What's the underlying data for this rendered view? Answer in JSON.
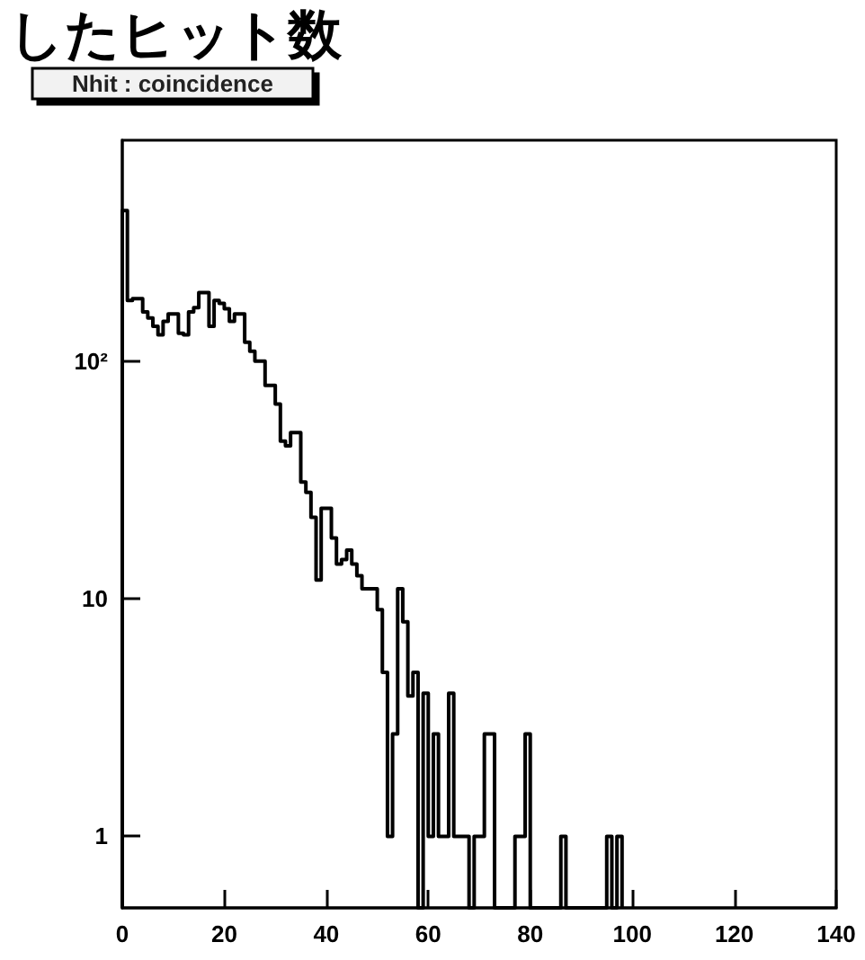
{
  "chart_data": {
    "type": "histogram",
    "title": "したヒット数",
    "subtitle": "Nhit : coincidence",
    "bins": [
      0,
      1,
      2,
      3,
      4,
      5,
      6,
      7,
      8,
      9,
      10,
      11,
      12,
      13,
      14,
      15,
      16,
      17,
      18,
      19,
      20,
      21,
      22,
      23,
      24,
      25,
      26,
      27,
      28,
      29,
      30,
      31,
      32,
      33,
      34,
      35,
      36,
      37,
      38,
      39,
      40,
      41,
      42,
      43,
      44,
      45,
      46,
      47,
      48,
      49,
      50,
      51,
      52,
      53,
      54,
      55,
      56,
      57,
      58,
      59,
      60,
      61,
      62,
      63,
      64,
      65,
      66,
      67,
      68,
      69,
      70,
      71,
      72,
      73,
      74,
      75,
      76,
      77,
      78,
      79,
      80,
      81,
      82,
      83,
      84,
      85,
      86,
      87,
      88,
      89,
      90,
      91,
      92,
      93,
      94,
      95,
      96,
      97,
      98
    ],
    "values": [
      430,
      180,
      183,
      183,
      161,
      152,
      140,
      129,
      147,
      158,
      158,
      131,
      129,
      161,
      168,
      194,
      194,
      140,
      180,
      175,
      166,
      147,
      158,
      158,
      120,
      110,
      100,
      100,
      79,
      79,
      66,
      46,
      44,
      50,
      50,
      31,
      28,
      22,
      12,
      24,
      24,
      18,
      14,
      14.6,
      16,
      14,
      12.5,
      11,
      11,
      11,
      9,
      4.9,
      1,
      2.7,
      11,
      8,
      3.9,
      4.9,
      null,
      4,
      1,
      2.7,
      1,
      1,
      4,
      1,
      1,
      1,
      null,
      1,
      1,
      2.7,
      2.7,
      null,
      null,
      null,
      null,
      1,
      1,
      2.7,
      null,
      null,
      null,
      null,
      null,
      null,
      1,
      null,
      null,
      null,
      null,
      null,
      null,
      null,
      null,
      1,
      null,
      1
    ],
    "color": "#000000",
    "log": "y",
    "xlim": [
      0,
      140
    ],
    "xticks": [
      0,
      20,
      40,
      60,
      80,
      100,
      120,
      140
    ],
    "ylim": [
      0.5,
      850
    ],
    "yticks": [
      1,
      10,
      {
        "value": 100,
        "label": "10²"
      }
    ],
    "grid": false
  }
}
